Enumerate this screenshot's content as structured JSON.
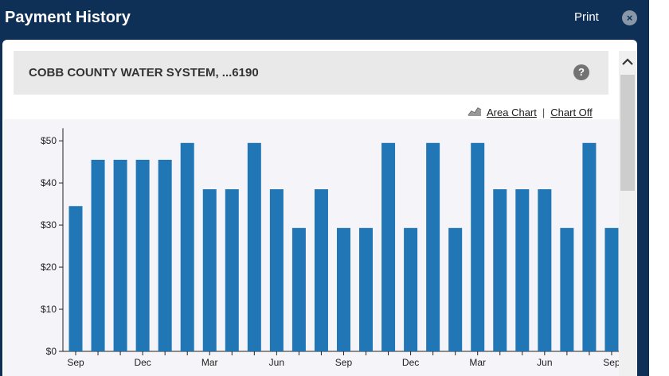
{
  "window": {
    "title": "Payment History",
    "print_label": "Print",
    "close_glyph": "×"
  },
  "account": {
    "name": "COBB COUNTY WATER SYSTEM, ...6190",
    "help_glyph": "?"
  },
  "chart_controls": {
    "area_chart_label": "Area Chart",
    "separator": "|",
    "chart_off_label": "Chart Off"
  },
  "colors": {
    "bar": "#2176b5",
    "header": "#0e2f56"
  },
  "chart_data": {
    "type": "bar",
    "ylim": [
      0,
      53
    ],
    "y_ticks": [
      {
        "value": 0,
        "label": "$0"
      },
      {
        "value": 10,
        "label": "$10"
      },
      {
        "value": 20,
        "label": "$20"
      },
      {
        "value": 30,
        "label": "$30"
      },
      {
        "value": 40,
        "label": "$40"
      },
      {
        "value": 50,
        "label": "$50"
      }
    ],
    "values": [
      34.5,
      45.5,
      45.5,
      45.5,
      45.5,
      49.5,
      38.5,
      38.5,
      49.5,
      38.5,
      29.3,
      38.5,
      29.3,
      29.3,
      49.5,
      29.3,
      49.5,
      29.3,
      49.5,
      38.5,
      38.5,
      38.5,
      29.3,
      49.5,
      29.3
    ],
    "x_tick_labels": [
      {
        "index": 0,
        "label": "Sep"
      },
      {
        "index": 3,
        "label": "Dec"
      },
      {
        "index": 6,
        "label": "Mar"
      },
      {
        "index": 9,
        "label": "Jun"
      },
      {
        "index": 12,
        "label": "Sep"
      },
      {
        "index": 15,
        "label": "Dec"
      },
      {
        "index": 18,
        "label": "Mar"
      },
      {
        "index": 21,
        "label": "Jun"
      },
      {
        "index": 24,
        "label": "Sep"
      }
    ]
  }
}
